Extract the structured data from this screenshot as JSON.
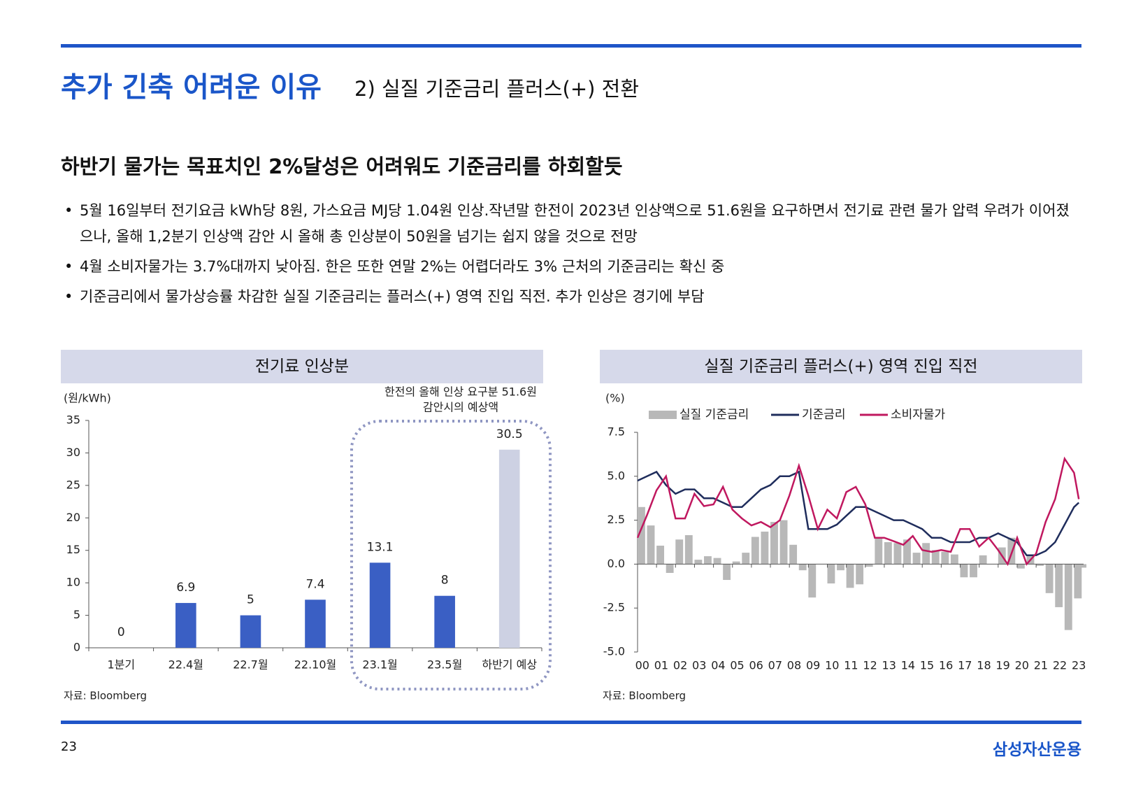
{
  "header": {
    "title": "추가 긴축 어려운 이유",
    "subtitle": "2) 실질 기준금리 플러스(+) 전환"
  },
  "headline": "하반기 물가는 목표치인 2%달성은 어려워도 기준금리를 하회할듯",
  "bullets": [
    "5월 16일부터 전기요금 kWh당 8원, 가스요금 MJ당 1.04원 인상.작년말 한전이 2023년 인상액으로 51.6원을 요구하면서 전기료 관련 물가 압력 우려가 이어졌으나, 올해 1,2분기 인상액 감안 시 올해 총 인상분이 50원을 넘기는 쉽지 않을 것으로 전망",
    "4월 소비자물가는 3.7%대까지 낮아짐. 한은 또한 연말 2%는 어렵더라도 3% 근처의 기준금리는 확신 중",
    "기준금리에서 물가상승률 차감한 실질 기준금리는 플러스(+) 영역 진입 직전. 추가 인상은 경기에 부담"
  ],
  "chart_data": [
    {
      "type": "bar",
      "title": "전기료 인상분",
      "y_label": "(원/kWh)",
      "annotation": [
        "한전의 올해 인상 요구분 51.6원",
        "감안시의 예상액"
      ],
      "categories": [
        "1분기",
        "22.4월",
        "22.7월",
        "22.10월",
        "23.1월",
        "23.5월",
        "하반기 예상"
      ],
      "values": [
        0,
        6.9,
        5,
        7.4,
        13.1,
        8,
        30.5
      ],
      "colors": [
        "#3a5fc4",
        "#3a5fc4",
        "#3a5fc4",
        "#3a5fc4",
        "#3a5fc4",
        "#3a5fc4",
        "#cdd1e3"
      ],
      "ylim": [
        0,
        35
      ],
      "yticks": [
        0,
        5,
        10,
        15,
        20,
        25,
        30,
        35
      ],
      "source": "자료: Bloomberg"
    },
    {
      "type": "combo",
      "title": "실질 기준금리 플러스(+) 영역 진입 직전",
      "y_label": "(%)",
      "x": [
        2000,
        2000.5,
        2001,
        2001.5,
        2002,
        2002.5,
        2003,
        2003.5,
        2004,
        2004.5,
        2005,
        2005.5,
        2006,
        2006.5,
        2007,
        2007.5,
        2008,
        2008.5,
        2009,
        2009.5,
        2010,
        2010.5,
        2011,
        2011.5,
        2012,
        2012.5,
        2013,
        2013.5,
        2014,
        2014.5,
        2015,
        2015.5,
        2016,
        2016.5,
        2017,
        2017.5,
        2018,
        2018.5,
        2019,
        2019.5,
        2020,
        2020.5,
        2021,
        2021.5,
        2022,
        2022.5,
        2023,
        2023.25
      ],
      "series": [
        {
          "name": "실질 기준금리",
          "type": "bar",
          "color": "#b8b8b8",
          "values": [
            3.25,
            2.2,
            1.05,
            -0.5,
            1.4,
            1.65,
            0.25,
            0.45,
            0.35,
            -0.9,
            0.15,
            0.65,
            1.55,
            1.85,
            2.4,
            2.5,
            1.1,
            -0.35,
            -1.9,
            0,
            -1.1,
            -0.35,
            -1.35,
            -1.15,
            -0.15,
            1.5,
            1.25,
            1.2,
            1.4,
            0.65,
            1.2,
            0.8,
            0.7,
            0.55,
            -0.75,
            -0.75,
            0.5,
            0,
            0.95,
            1.5,
            -0.25,
            0.5,
            -0.1,
            -1.65,
            -2.45,
            -3.75,
            -1.95,
            -0.2
          ]
        },
        {
          "name": "기준금리",
          "type": "line",
          "color": "#1f2d5c",
          "values": [
            4.75,
            5.0,
            5.25,
            4.5,
            4.0,
            4.25,
            4.25,
            3.75,
            3.75,
            3.5,
            3.25,
            3.25,
            3.75,
            4.25,
            4.5,
            5.0,
            5.0,
            5.25,
            2.0,
            2.0,
            2.0,
            2.25,
            2.75,
            3.25,
            3.25,
            3.0,
            2.75,
            2.5,
            2.5,
            2.25,
            2.0,
            1.5,
            1.5,
            1.25,
            1.25,
            1.25,
            1.5,
            1.5,
            1.75,
            1.5,
            1.25,
            0.5,
            0.5,
            0.75,
            1.25,
            2.25,
            3.25,
            3.5
          ]
        },
        {
          "name": "소비자물가",
          "type": "line",
          "color": "#c0185f",
          "values": [
            1.5,
            2.8,
            4.2,
            5.0,
            2.6,
            2.6,
            4.0,
            3.3,
            3.4,
            4.4,
            3.1,
            2.6,
            2.2,
            2.4,
            2.1,
            2.5,
            3.9,
            5.6,
            3.9,
            2.0,
            3.1,
            2.6,
            4.1,
            4.4,
            3.4,
            1.5,
            1.5,
            1.3,
            1.1,
            1.6,
            0.8,
            0.7,
            0.8,
            0.7,
            2.0,
            2.0,
            1.0,
            1.5,
            0.8,
            0.0,
            1.5,
            0.0,
            0.6,
            2.4,
            3.7,
            6.0,
            5.2,
            3.7
          ]
        }
      ],
      "xlim": [
        2000,
        2023.5
      ],
      "xticks": [
        {
          "value": 2000,
          "label": "00"
        },
        {
          "value": 2001,
          "label": "01"
        },
        {
          "value": 2002,
          "label": "02"
        },
        {
          "value": 2003,
          "label": "03"
        },
        {
          "value": 2004,
          "label": "04"
        },
        {
          "value": 2005,
          "label": "05"
        },
        {
          "value": 2006,
          "label": "06"
        },
        {
          "value": 2007,
          "label": "07"
        },
        {
          "value": 2008,
          "label": "08"
        },
        {
          "value": 2009,
          "label": "09"
        },
        {
          "value": 2010,
          "label": "10"
        },
        {
          "value": 2011,
          "label": "11"
        },
        {
          "value": 2012,
          "label": "12"
        },
        {
          "value": 2013,
          "label": "13"
        },
        {
          "value": 2014,
          "label": "14"
        },
        {
          "value": 2015,
          "label": "15"
        },
        {
          "value": 2016,
          "label": "16"
        },
        {
          "value": 2017,
          "label": "17"
        },
        {
          "value": 2018,
          "label": "18"
        },
        {
          "value": 2019,
          "label": "19"
        },
        {
          "value": 2020,
          "label": "20"
        },
        {
          "value": 2021,
          "label": "21"
        },
        {
          "value": 2022,
          "label": "22"
        },
        {
          "value": 2023,
          "label": "23"
        }
      ],
      "ylim": [
        -5,
        7.5
      ],
      "yticks": [
        {
          "value": -5,
          "label": "-5.0"
        },
        -2.5,
        {
          "value": 0,
          "label": "0.0"
        },
        2.5,
        {
          "value": 5,
          "label": "5.0"
        },
        7.5
      ],
      "source": "자료: Bloomberg"
    }
  ],
  "footer": {
    "page": "23",
    "brand": "삼성자산운용"
  }
}
